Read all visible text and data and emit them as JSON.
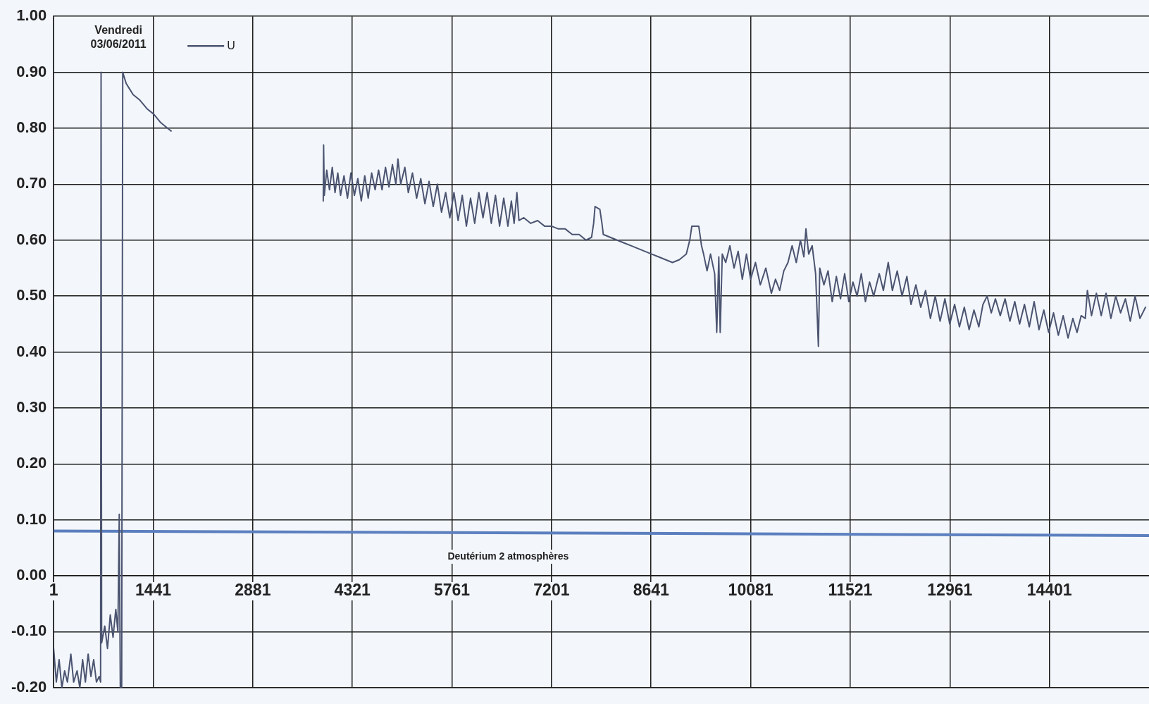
{
  "chart_data": {
    "type": "line",
    "xlim": [
      1,
      15841
    ],
    "xticks": [
      1,
      1441,
      2881,
      4321,
      5761,
      7201,
      8641,
      10081,
      11521,
      12961,
      14401
    ],
    "ylim": [
      -0.2,
      1.0
    ],
    "yticks": [
      {
        "value": -0.2,
        "label": "-0.20"
      },
      {
        "value": -0.1,
        "label": "-0.10"
      },
      {
        "value": 0,
        "label": "0.00"
      },
      {
        "value": 0.1,
        "label": "0.10"
      },
      {
        "value": 0.2,
        "label": "0.20"
      },
      {
        "value": 0.3,
        "label": "0.30"
      },
      {
        "value": 0.4,
        "label": "0.40"
      },
      {
        "value": 0.5,
        "label": "0.50"
      },
      {
        "value": 0.6,
        "label": "0.60"
      },
      {
        "value": 0.7,
        "label": "0.70"
      },
      {
        "value": 0.8,
        "label": "0.80"
      },
      {
        "value": 0.9,
        "label": "0.90"
      },
      {
        "value": 1.0,
        "label": "1.00"
      }
    ],
    "grid": true,
    "legend": "top left",
    "marker": "none",
    "line_style": "solid",
    "annotations": [
      "Vendredi\n03/06/2011",
      "Deutérium 2 atmosphères"
    ],
    "series": [
      {
        "name": "U",
        "color": "#4b5470",
        "x": [
          1,
          40,
          80,
          120,
          160,
          200,
          250,
          290,
          340,
          380,
          420,
          460,
          500,
          540,
          580,
          620,
          660,
          680,
          687,
          695,
          740,
          780,
          820,
          860,
          900,
          930,
          950,
          965,
          985,
          1000,
          1050,
          1100,
          1150,
          1200,
          1250,
          1350,
          1450,
          1550,
          1650,
          1700,
          2800,
          3900,
          3905,
          3915,
          3950,
          3990,
          4030,
          4070,
          4110,
          4150,
          4200,
          4250,
          4300,
          4350,
          4400,
          4450,
          4500,
          4550,
          4600,
          4650,
          4700,
          4750,
          4800,
          4850,
          4900,
          4950,
          4980,
          5020,
          5080,
          5130,
          5190,
          5250,
          5310,
          5370,
          5430,
          5490,
          5550,
          5610,
          5670,
          5730,
          5790,
          5850,
          5910,
          5970,
          6030,
          6090,
          6150,
          6210,
          6270,
          6330,
          6390,
          6450,
          6510,
          6570,
          6620,
          6660,
          6700,
          6730,
          6800,
          6900,
          7000,
          7100,
          7200,
          7300,
          7400,
          7500,
          7600,
          7700,
          7780,
          7810,
          7830,
          7900,
          7930,
          7950,
          8050,
          8150,
          8250,
          8350,
          8450,
          8550,
          8650,
          8750,
          8850,
          8950,
          9050,
          9150,
          9200,
          9230,
          9330,
          9370,
          9400,
          9450,
          9500,
          9560,
          9590,
          9620,
          9640,
          9670,
          9720,
          9780,
          9840,
          9900,
          9960,
          10020,
          10080,
          10150,
          10220,
          10300,
          10380,
          10440,
          10500,
          10560,
          10620,
          10680,
          10740,
          10800,
          10850,
          10880,
          10920,
          10970,
          11020,
          11060,
          11080,
          11140,
          11200,
          11260,
          11320,
          11380,
          11440,
          11500,
          11560,
          11620,
          11680,
          11740,
          11800,
          11860,
          11940,
          12000,
          12070,
          12130,
          12200,
          12270,
          12340,
          12400,
          12470,
          12540,
          12610,
          12680,
          12750,
          12820,
          12890,
          12960,
          13030,
          13100,
          13170,
          13240,
          13310,
          13380,
          13440,
          13500,
          13560,
          13620,
          13690,
          13760,
          13830,
          13900,
          13970,
          14040,
          14110,
          14180,
          14250,
          14320,
          14390,
          14460,
          14530,
          14600,
          14670,
          14740,
          14800,
          14860,
          14920,
          14950,
          15010,
          15080,
          15150,
          15220,
          15290,
          15360,
          15430,
          15500,
          15570,
          15640,
          15710,
          15790
        ],
        "values": [
          -0.13,
          -0.19,
          -0.15,
          -0.2,
          -0.17,
          -0.19,
          -0.14,
          -0.19,
          -0.17,
          -0.2,
          -0.15,
          -0.19,
          -0.14,
          -0.18,
          -0.15,
          -0.19,
          -0.18,
          -0.19,
          0.9,
          -0.12,
          -0.09,
          -0.13,
          -0.07,
          -0.11,
          -0.06,
          -0.1,
          0.11,
          -0.2,
          -0.2,
          0.9,
          0.88,
          0.87,
          0.86,
          0.855,
          0.85,
          0.835,
          0.825,
          0.81,
          0.8,
          0.795,
          null,
          0.67,
          0.77,
          0.68,
          0.725,
          0.69,
          0.73,
          0.685,
          0.72,
          0.68,
          0.715,
          0.675,
          0.72,
          0.68,
          0.71,
          0.67,
          0.715,
          0.675,
          0.72,
          0.69,
          0.725,
          0.69,
          0.73,
          0.695,
          0.735,
          0.7,
          0.745,
          0.7,
          0.73,
          0.685,
          0.72,
          0.675,
          0.71,
          0.665,
          0.705,
          0.66,
          0.7,
          0.65,
          0.685,
          0.64,
          0.685,
          0.635,
          0.68,
          0.625,
          0.675,
          0.63,
          0.685,
          0.64,
          0.685,
          0.63,
          0.68,
          0.625,
          0.675,
          0.625,
          0.67,
          0.63,
          0.685,
          0.635,
          0.64,
          0.63,
          0.635,
          0.625,
          0.625,
          0.62,
          0.62,
          0.61,
          0.61,
          0.6,
          0.605,
          0.63,
          0.66,
          0.655,
          0.63,
          0.61,
          0.605,
          0.6,
          0.595,
          0.59,
          0.585,
          0.58,
          0.575,
          0.57,
          0.565,
          0.56,
          0.565,
          0.575,
          0.6,
          0.625,
          0.625,
          0.59,
          0.575,
          0.545,
          0.575,
          0.54,
          0.435,
          0.57,
          0.435,
          0.575,
          0.56,
          0.59,
          0.55,
          0.58,
          0.53,
          0.575,
          0.53,
          0.56,
          0.52,
          0.55,
          0.505,
          0.53,
          0.51,
          0.545,
          0.56,
          0.59,
          0.56,
          0.6,
          0.57,
          0.62,
          0.575,
          0.59,
          0.54,
          0.41,
          0.55,
          0.52,
          0.545,
          0.49,
          0.535,
          0.495,
          0.54,
          0.49,
          0.525,
          0.5,
          0.54,
          0.49,
          0.525,
          0.5,
          0.54,
          0.51,
          0.56,
          0.51,
          0.545,
          0.5,
          0.535,
          0.485,
          0.52,
          0.48,
          0.51,
          0.46,
          0.5,
          0.455,
          0.495,
          0.45,
          0.485,
          0.445,
          0.48,
          0.44,
          0.475,
          0.445,
          0.485,
          0.5,
          0.47,
          0.495,
          0.465,
          0.495,
          0.455,
          0.49,
          0.45,
          0.485,
          0.445,
          0.49,
          0.44,
          0.475,
          0.435,
          0.47,
          0.43,
          0.465,
          0.425,
          0.46,
          0.435,
          0.465,
          0.46,
          0.51,
          0.465,
          0.505,
          0.465,
          0.505,
          0.46,
          0.5,
          0.47,
          0.495,
          0.455,
          0.5,
          0.46,
          0.48
        ]
      },
      {
        "color": "#5b7fbf",
        "x": [
          1,
          15841
        ],
        "values": [
          0.08,
          0.072
        ]
      }
    ]
  }
}
